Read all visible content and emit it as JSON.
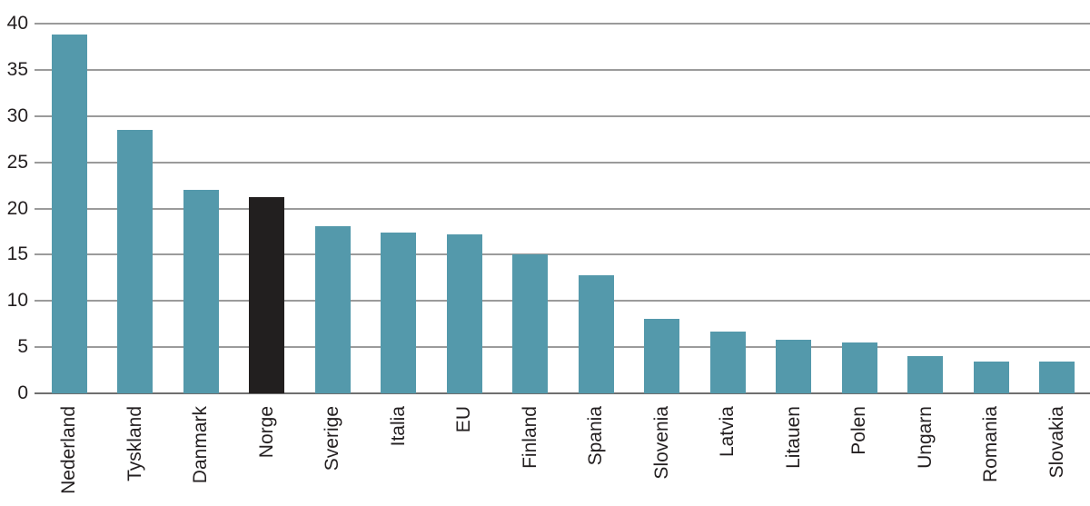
{
  "chart_data": {
    "type": "bar",
    "title": "",
    "xlabel": "",
    "ylabel": "",
    "categories": [
      "Nederland",
      "Tyskland",
      "Danmark",
      "Norge",
      "Sverige",
      "Italia",
      "EU",
      "Finland",
      "Spania",
      "Slovenia",
      "Latvia",
      "Litauen",
      "Polen",
      "Ungarn",
      "Romania",
      "Slovakia"
    ],
    "values": [
      38.8,
      28.5,
      22.0,
      21.2,
      18.1,
      17.4,
      17.2,
      15.0,
      12.8,
      8.1,
      6.7,
      5.8,
      5.5,
      4.0,
      3.4,
      3.4
    ],
    "yticks": [
      0,
      5,
      10,
      15,
      20,
      25,
      30,
      35,
      40
    ],
    "ylim": [
      0,
      40
    ],
    "grid": true,
    "legend_position": "none",
    "bar_color": "#5499ab",
    "highlight_category": "Norge",
    "highlight_color": "#221f1f",
    "gridline_color": "#9b9b9b",
    "axis_line_color": "#6f6f6f",
    "text_color": "#231f20",
    "background_color": "#ffffff"
  }
}
